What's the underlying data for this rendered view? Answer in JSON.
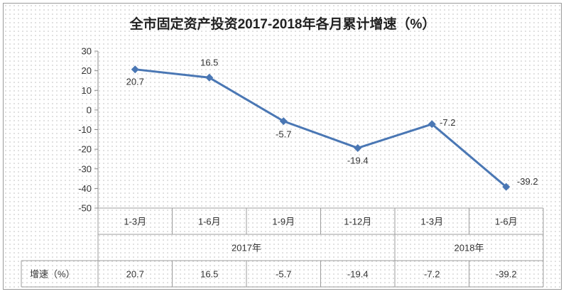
{
  "chart_data": {
    "type": "line",
    "title": "全市固定资产投资2017-2018年各月累计增速（%）",
    "categories": [
      "1-3月",
      "1-6月",
      "1-9月",
      "1-12月",
      "1-3月",
      "1-6月"
    ],
    "groups": [
      {
        "label": "2017年",
        "span": 4
      },
      {
        "label": "2018年",
        "span": 2
      }
    ],
    "series": [
      {
        "name": "增速（%）",
        "values": [
          20.7,
          16.5,
          -5.7,
          -19.4,
          -7.2,
          -39.2
        ]
      }
    ],
    "value_labels": [
      "20.7",
      "16.5",
      "-5.7",
      "-19.4",
      "-7.2",
      "-39.2"
    ],
    "ylim": [
      -50,
      30
    ],
    "yticks": [
      30,
      20,
      10,
      0,
      -10,
      -20,
      -30,
      -40,
      -50
    ],
    "line_color": "#4a77b4",
    "data_table": true,
    "grid": false
  }
}
